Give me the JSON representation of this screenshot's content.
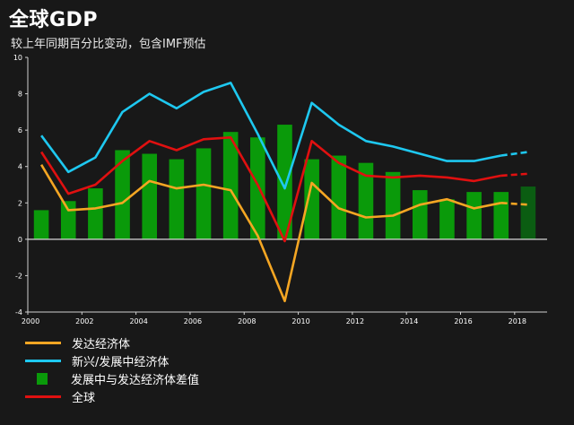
{
  "title": "全球GDP",
  "subtitle": "较上年同期百分比变动，包含IMF预估",
  "colors": {
    "developed": "#f5a623",
    "emerging": "#1ec8f0",
    "gap": "#0a9a0a",
    "gap_forecast": "#0b5d12",
    "world": "#e01010",
    "zero_line": "#d8d8d8",
    "axis": "#cfcfcf"
  },
  "chart_data": {
    "type": "bar+line",
    "title": "全球GDP",
    "subtitle": "较上年同期百分比变动，包含IMF预估",
    "x": [
      2000,
      2001,
      2002,
      2003,
      2004,
      2005,
      2006,
      2007,
      2008,
      2009,
      2010,
      2011,
      2012,
      2013,
      2014,
      2015,
      2016,
      2017,
      2018
    ],
    "x_tick_labels": [
      "2000",
      "2002",
      "2004",
      "2006",
      "2008",
      "2010",
      "2012",
      "2014",
      "2016",
      "2018"
    ],
    "x_tick_values": [
      2000,
      2002,
      2004,
      2006,
      2008,
      2010,
      2012,
      2014,
      2016,
      2018
    ],
    "y_tick_labels": [
      "10",
      "8",
      "6",
      "4",
      "2",
      "0",
      "-2",
      "-4"
    ],
    "y_tick_values": [
      10,
      8,
      6,
      4,
      2,
      0,
      -2,
      -4
    ],
    "ylim": [
      -4,
      10
    ],
    "xlim": [
      2000,
      2019.2
    ],
    "forecast_from": 2017,
    "bars": {
      "name": "发展中与发达经济体差值",
      "values": [
        1.6,
        2.1,
        2.8,
        4.9,
        4.7,
        4.4,
        5.0,
        5.9,
        5.6,
        6.3,
        4.4,
        4.6,
        4.2,
        3.7,
        2.7,
        2.2,
        2.6,
        2.6,
        2.9
      ]
    },
    "series": [
      {
        "name": "发达经济体",
        "key": "developed",
        "values": [
          4.1,
          1.6,
          1.7,
          2.0,
          3.2,
          2.8,
          3.0,
          2.7,
          0.2,
          -3.4,
          3.1,
          1.7,
          1.2,
          1.3,
          1.9,
          2.2,
          1.7,
          2.0,
          1.9
        ]
      },
      {
        "name": "新兴/发展中经济体",
        "key": "emerging",
        "values": [
          5.7,
          3.7,
          4.5,
          7.0,
          8.0,
          7.2,
          8.1,
          8.6,
          5.8,
          2.8,
          7.5,
          6.3,
          5.4,
          5.1,
          4.7,
          4.3,
          4.3,
          4.6,
          4.8
        ]
      },
      {
        "name": "全球",
        "key": "world",
        "values": [
          4.8,
          2.5,
          3.0,
          4.3,
          5.4,
          4.9,
          5.5,
          5.6,
          3.0,
          -0.1,
          5.4,
          4.2,
          3.5,
          3.4,
          3.5,
          3.4,
          3.2,
          3.5,
          3.6
        ]
      }
    ],
    "legend": [
      {
        "label": "发达经济体",
        "kind": "line",
        "key": "developed"
      },
      {
        "label": "新兴/发展中经济体",
        "kind": "line",
        "key": "emerging"
      },
      {
        "label": "发展中与发达经济体差值",
        "kind": "bar",
        "key": "gap"
      },
      {
        "label": "全球",
        "kind": "line",
        "key": "world"
      }
    ],
    "legend_position": "bottom-left",
    "grid": false
  }
}
